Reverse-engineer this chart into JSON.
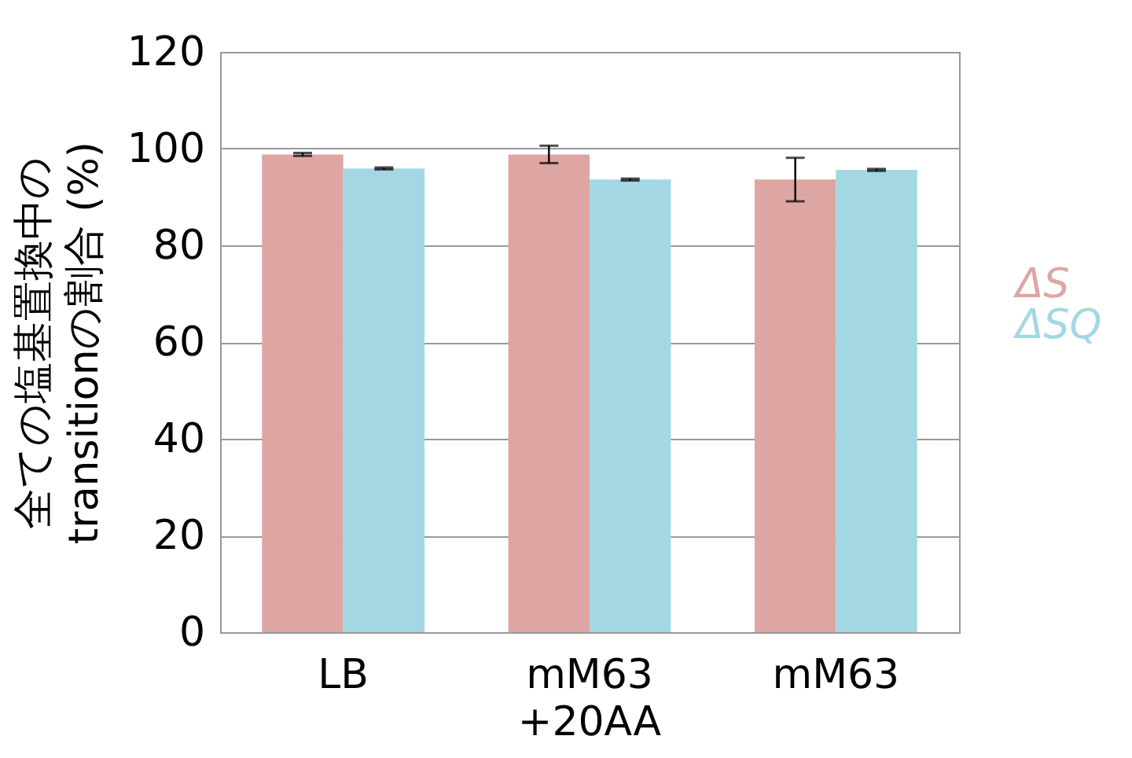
{
  "chart_data": {
    "type": "bar",
    "ylabel": "全ての塩基置換中の\ntransitionの割合 (%)",
    "categories": [
      "LB",
      "mM63\n+20AA",
      "mM63"
    ],
    "series": [
      {
        "name": "ΔS",
        "color": "#dea6a2",
        "values": [
          98.8,
          98.8,
          93.6
        ],
        "errors": [
          0.3,
          1.8,
          4.5
        ]
      },
      {
        "name": "ΔSQ",
        "color": "#a3d7e3",
        "values": [
          95.9,
          93.6,
          95.6
        ],
        "errors": [
          0.2,
          0.2,
          0.2
        ]
      }
    ],
    "ylim": [
      0,
      120
    ],
    "yticks": [
      0,
      20,
      40,
      60,
      80,
      100,
      120
    ],
    "grid": "y",
    "legend": "right"
  }
}
